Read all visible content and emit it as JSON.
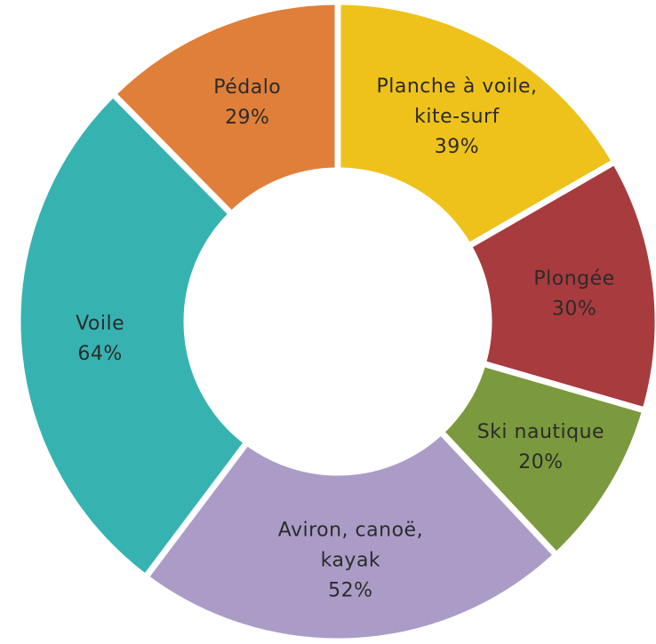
{
  "chart_data": {
    "type": "pie",
    "variant": "donut",
    "slices": [
      {
        "label_lines": [
          "Planche à voile,",
          "kite-surf"
        ],
        "value": 39,
        "value_text": "39%",
        "color": "#eec21a"
      },
      {
        "label_lines": [
          "Plongée"
        ],
        "value": 30,
        "value_text": "30%",
        "color": "#a83b3e"
      },
      {
        "label_lines": [
          "Ski nautique"
        ],
        "value": 20,
        "value_text": "20%",
        "color": "#7b9a3d"
      },
      {
        "label_lines": [
          "Aviron, canoë,",
          "kayak"
        ],
        "value": 52,
        "value_text": "52%",
        "color": "#ab9cc7"
      },
      {
        "label_lines": [
          "Voile"
        ],
        "value": 64,
        "value_text": "64%",
        "color": "#36b3b1"
      },
      {
        "label_lines": [
          "Pédalo"
        ],
        "value": 29,
        "value_text": "29%",
        "color": "#e07f3a"
      }
    ]
  }
}
